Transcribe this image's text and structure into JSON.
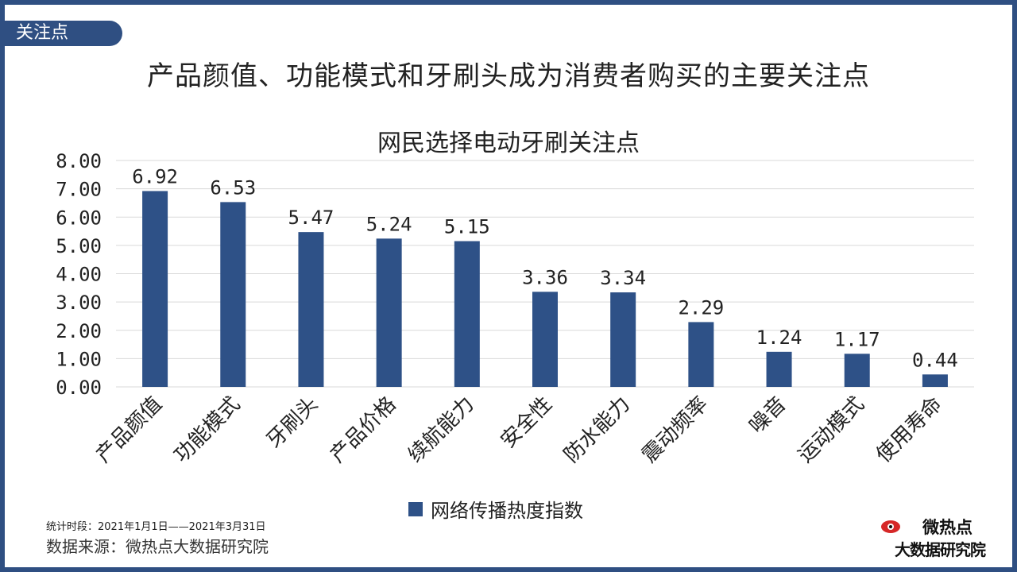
{
  "header": {
    "tag": "关注点",
    "title": "产品颜值、功能模式和牙刷头成为消费者购买的主要关注点"
  },
  "chart_data": {
    "type": "bar",
    "title": "网民选择电动牙刷关注点",
    "categories": [
      "产品颜值",
      "功能模式",
      "牙刷头",
      "产品价格",
      "续航能力",
      "安全性",
      "防水能力",
      "震动频率",
      "噪音",
      "运动模式",
      "使用寿命"
    ],
    "series": [
      {
        "name": "网络传播热度指数",
        "values": [
          6.92,
          6.53,
          5.47,
          5.24,
          5.15,
          3.36,
          3.34,
          2.29,
          1.24,
          1.17,
          0.44
        ]
      }
    ],
    "data_labels": [
      "6.92",
      "6.53",
      "5.47",
      "5.24",
      "5.15",
      "3.36",
      "3.34",
      "2.29",
      "1.24",
      "1.17",
      "0.44"
    ],
    "yticks": [
      "0.00",
      "1.00",
      "2.00",
      "3.00",
      "4.00",
      "5.00",
      "6.00",
      "7.00",
      "8.00"
    ],
    "ylim": [
      0,
      8
    ],
    "grid": true,
    "legend_position": "bottom",
    "colors": {
      "bar": "#2e5187",
      "grid": "#d9d9d9"
    }
  },
  "footer": {
    "period": "统计时段：2021年1月1日——2021年3月31日",
    "source": "数据来源：微热点大数据研究院",
    "logo_top": "微热点",
    "logo_bottom": "大数据研究院"
  }
}
